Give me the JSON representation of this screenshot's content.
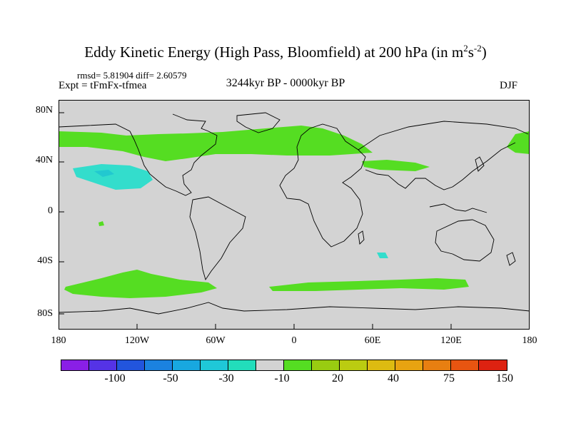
{
  "title": {
    "main": "Eddy Kinetic Energy (High Pass, Bloomfield) at 200 hPa (in m",
    "sup1": "2",
    "mid": "s",
    "sup2": "-2",
    "end": ")"
  },
  "stats": "rmsd= 5.81904 diff= 2.60579",
  "experiment": "Expt = tFmFx-tfmea",
  "period": "3244kyr BP - 0000kyr BP",
  "season": "DJF",
  "map": {
    "lat_ticks": [
      "80N",
      "40N",
      "0",
      "40S",
      "80S"
    ],
    "lon_ticks": [
      "180",
      "120W",
      "60W",
      "0",
      "60E",
      "120E",
      "180"
    ],
    "ocean_color": "#d3d3d3",
    "coastline_color": "#000000",
    "anomaly_regions": [
      {
        "name": "northern-storm-track",
        "class": "10 to 20",
        "color": "#55dd22"
      },
      {
        "name": "north-pacific-decrease",
        "class": "-20 to -10",
        "color": "#33ddcc"
      },
      {
        "name": "southern-pacific-band",
        "class": "10 to 20",
        "color": "#55dd22"
      },
      {
        "name": "southern-indian-band",
        "class": "10 to 20",
        "color": "#55dd22"
      }
    ]
  },
  "colorbar": {
    "labels": [
      "-100",
      "-50",
      "-30",
      "-10",
      "20",
      "40",
      "75",
      "150"
    ],
    "colors": [
      "#8a1fe6",
      "#5533e6",
      "#2255dd",
      "#1b82e0",
      "#18a8e0",
      "#1fc8d8",
      "#22ddbb",
      "#d3d3d3",
      "#55dd22",
      "#99cc11",
      "#bbcc11",
      "#ddbb11",
      "#e8a311",
      "#e87f11",
      "#e85511",
      "#dd2211"
    ]
  }
}
